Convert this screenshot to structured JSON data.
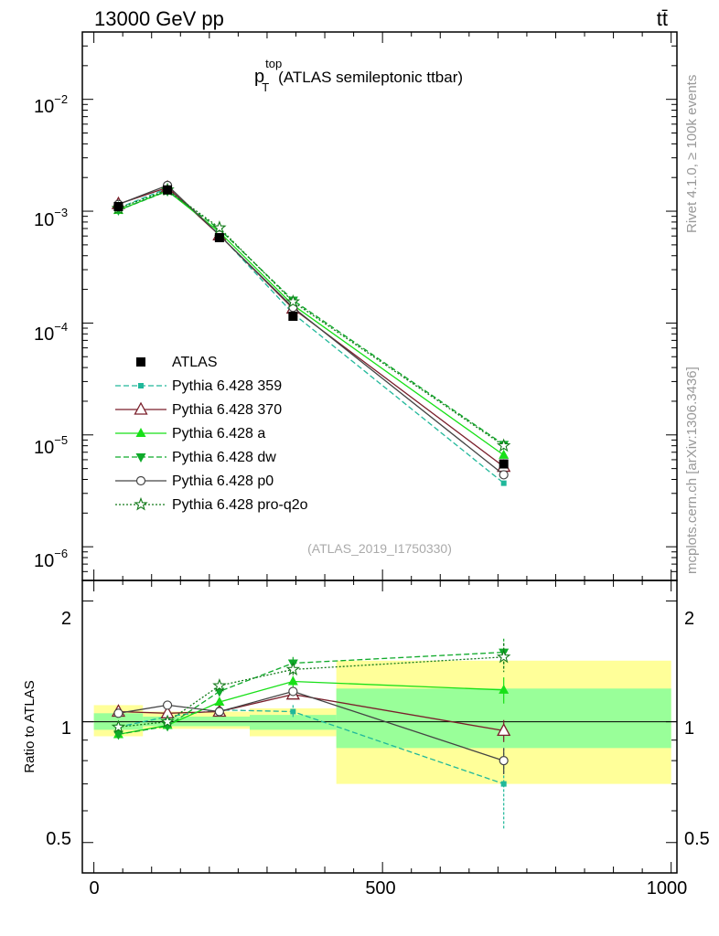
{
  "header": {
    "left": "13000 GeV pp",
    "right": "tt̄"
  },
  "side_labels": {
    "top": "Rivet 4.1.0, ≥ 100k events",
    "bottom": "mcplots.cern.ch [arXiv:1306.3436]"
  },
  "chart_data": {
    "type": "line",
    "title": "(ATLAS semileptonic ttbar)",
    "title_var": "p",
    "title_sub": "T",
    "title_sup": "top",
    "analysis_id": "(ATLAS_2019_I1750330)",
    "xlim": [
      -20,
      1010
    ],
    "x_ticks": [
      0,
      500,
      1000
    ],
    "x_tick_labels": [
      "0",
      "500",
      "1000"
    ],
    "main": {
      "yscale": "log",
      "ylim": [
        5e-07,
        0.04
      ],
      "y_ticks": [
        1e-06,
        1e-05,
        0.0001,
        0.001,
        0.01
      ],
      "y_tick_mantissa": [
        "10",
        "10",
        "10",
        "10",
        "10"
      ],
      "y_tick_exponents": [
        "−6",
        "−5",
        "−4",
        "−3",
        "−2"
      ]
    },
    "ratio": {
      "ylabel": "Ratio to ATLAS",
      "ylim": [
        0.42,
        2.25
      ],
      "y_ticks": [
        0.5,
        1,
        2
      ],
      "y_tick_labels": [
        "0.5",
        "1",
        "2"
      ],
      "bands_yellow": [
        {
          "x0": 0,
          "x1": 85,
          "lo": 0.92,
          "hi": 1.1
        },
        {
          "x0": 85,
          "x1": 270,
          "lo": 0.96,
          "hi": 1.06
        },
        {
          "x0": 270,
          "x1": 420,
          "lo": 0.92,
          "hi": 1.08
        },
        {
          "x0": 420,
          "x1": 1000,
          "lo": 0.7,
          "hi": 1.42
        }
      ],
      "bands_green": [
        {
          "x0": 0,
          "x1": 85,
          "lo": 0.955,
          "hi": 1.05
        },
        {
          "x0": 85,
          "x1": 270,
          "lo": 0.975,
          "hi": 1.03
        },
        {
          "x0": 270,
          "x1": 420,
          "lo": 0.955,
          "hi": 1.04
        },
        {
          "x0": 420,
          "x1": 1000,
          "lo": 0.86,
          "hi": 1.21
        }
      ]
    },
    "x": [
      42.5,
      127.5,
      217.5,
      345,
      710
    ],
    "data": {
      "name": "ATLAS",
      "values": [
        0.0011,
        0.00155,
        0.00058,
        0.000115,
        5.5e-06
      ]
    },
    "series": [
      {
        "name": "Pythia 6.428 359",
        "color": "#20b89a",
        "dash": "6,3",
        "marker": "square-small",
        "values": [
          0.00107,
          0.0016,
          0.00062,
          0.000122,
          3.7e-06
        ],
        "ratio": [
          0.97,
          1.03,
          1.07,
          1.06,
          0.7
        ],
        "ratio_err": [
          0.02,
          0.015,
          0.02,
          0.04,
          0.16
        ]
      },
      {
        "name": "Pythia 6.428 370",
        "color": "#7a1f2b",
        "dash": "",
        "marker": "triangle-open",
        "values": [
          0.00116,
          0.00163,
          0.00061,
          0.000135,
          5.2e-06
        ],
        "ratio": [
          1.06,
          1.05,
          1.06,
          1.17,
          0.95
        ],
        "ratio_err": [
          0.02,
          0.015,
          0.02,
          0.03,
          0.06
        ]
      },
      {
        "name": "Pythia 6.428 a",
        "color": "#18e018",
        "dash": "",
        "marker": "triangle",
        "values": [
          0.00102,
          0.00152,
          0.00065,
          0.000145,
          6.6e-06
        ],
        "ratio": [
          0.93,
          0.98,
          1.12,
          1.26,
          1.2
        ],
        "ratio_err": [
          0.02,
          0.015,
          0.02,
          0.04,
          0.09
        ]
      },
      {
        "name": "Pythia 6.428 dw",
        "color": "#0faa2a",
        "dash": "6,3",
        "marker": "triangle-down",
        "values": [
          0.00102,
          0.00151,
          0.00069,
          0.00016,
          8.2e-06
        ],
        "ratio": [
          0.93,
          0.975,
          1.19,
          1.4,
          1.49
        ],
        "ratio_err": [
          0.02,
          0.015,
          0.025,
          0.05,
          0.12
        ]
      },
      {
        "name": "Pythia 6.428 p0",
        "color": "#444444",
        "dash": "",
        "marker": "circle-open",
        "values": [
          0.00115,
          0.0017,
          0.00061,
          0.000138,
          4.4e-06
        ],
        "ratio": [
          1.05,
          1.1,
          1.06,
          1.19,
          0.8
        ],
        "ratio_err": [
          0.02,
          0.015,
          0.02,
          0.03,
          0.06
        ]
      },
      {
        "name": "Pythia 6.428 pro-q2o",
        "color": "#137a1a",
        "dash": "2,2",
        "marker": "star",
        "values": [
          0.00106,
          0.00155,
          0.00071,
          0.000155,
          8e-06
        ],
        "ratio": [
          0.97,
          1.0,
          1.23,
          1.35,
          1.45
        ],
        "ratio_err": [
          0.02,
          0.015,
          0.025,
          0.05,
          0.12
        ]
      }
    ]
  }
}
